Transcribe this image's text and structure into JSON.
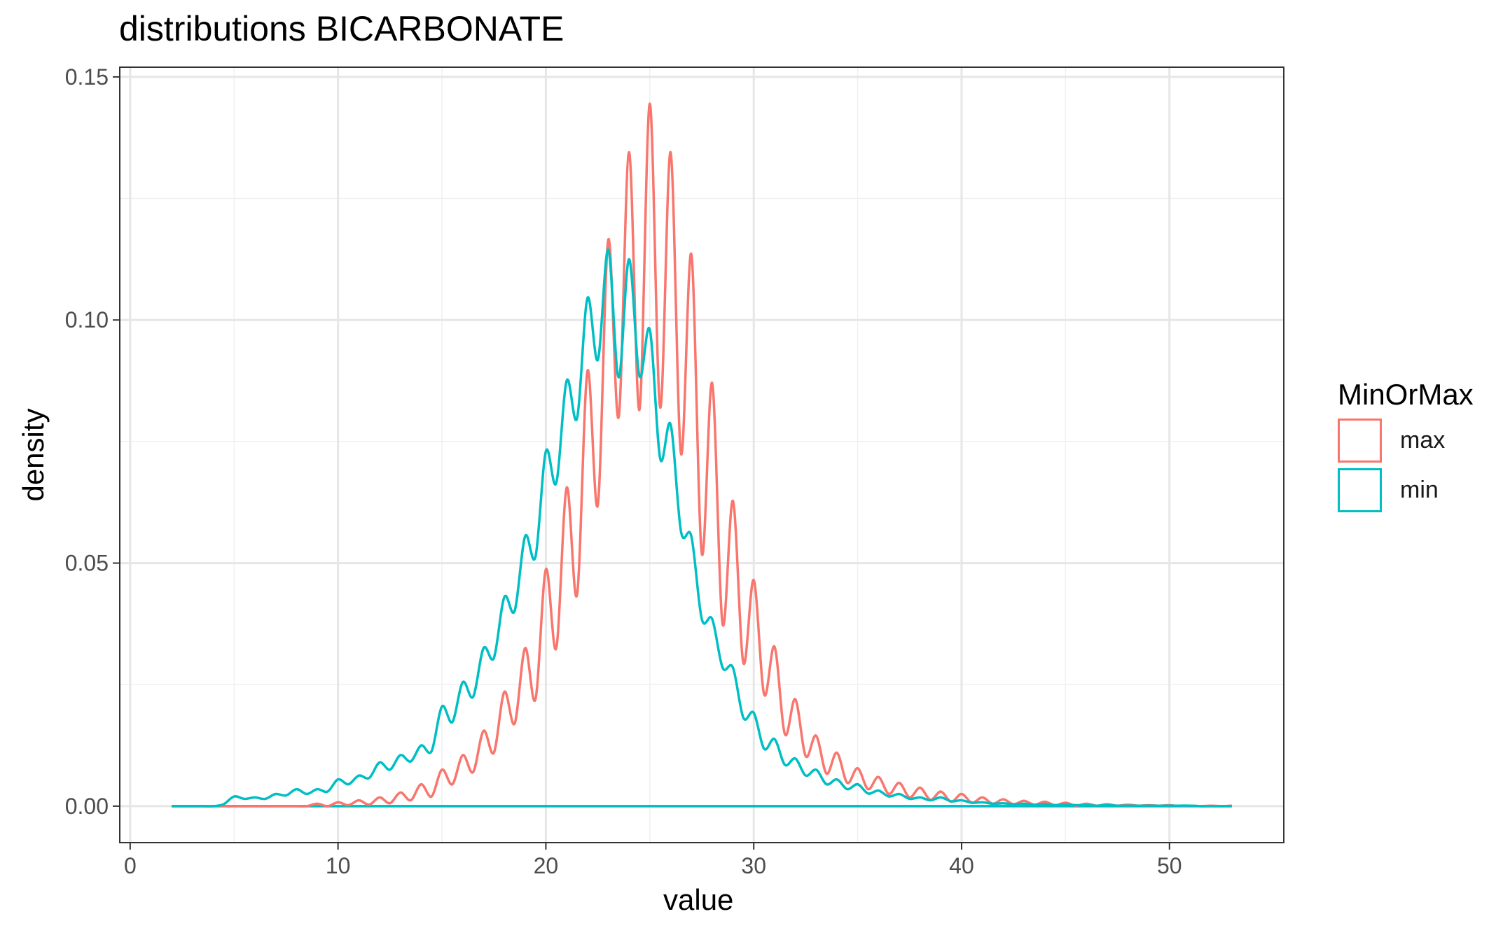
{
  "chart_data": {
    "type": "line",
    "title": "distributions BICARBONATE",
    "xlabel": "value",
    "ylabel": "density",
    "xlim": [
      -0.5,
      55.5
    ],
    "ylim": [
      -0.0075,
      0.152
    ],
    "x_ticks": [
      0,
      10,
      20,
      30,
      40,
      50
    ],
    "x_tick_labels": [
      "0",
      "10",
      "20",
      "30",
      "40",
      "50"
    ],
    "y_ticks": [
      0.0,
      0.05,
      0.1,
      0.15
    ],
    "y_tick_labels": [
      "0.00",
      "0.05",
      "0.10",
      "0.15"
    ],
    "grid": true,
    "legend": {
      "title": "MinOrMax",
      "position": "right"
    },
    "colors": {
      "max": "#F8766D",
      "min": "#00BFC4"
    },
    "series": [
      {
        "name": "max",
        "color": "#F8766D",
        "x": [
          2,
          3,
          4,
          5,
          6,
          7,
          8,
          9,
          10,
          11,
          12,
          13,
          14,
          15,
          16,
          17,
          18,
          19,
          20,
          21,
          22,
          23,
          24,
          25,
          26,
          27,
          28,
          29,
          30,
          31,
          32,
          33,
          34,
          35,
          36,
          37,
          38,
          39,
          40,
          41,
          42,
          43,
          44,
          45,
          46,
          47,
          48,
          49,
          50,
          51,
          52,
          53
        ],
        "values": [
          0,
          0,
          0,
          0,
          0,
          0,
          0,
          0.0005,
          0.0008,
          0.0012,
          0.0018,
          0.0028,
          0.0045,
          0.0075,
          0.0105,
          0.0155,
          0.0235,
          0.0325,
          0.0487,
          0.0655,
          0.0895,
          0.1165,
          0.1345,
          0.1445,
          0.1345,
          0.1135,
          0.087,
          0.0628,
          0.0465,
          0.0328,
          0.022,
          0.0145,
          0.011,
          0.0078,
          0.006,
          0.0048,
          0.0038,
          0.003,
          0.0025,
          0.0018,
          0.0014,
          0.0011,
          0.0009,
          0.0007,
          0.0005,
          0.0004,
          0.0003,
          0.0002,
          0.0002,
          0.0001,
          0.0001,
          0.0001
        ],
        "troughs": [
          0,
          0,
          0,
          0,
          0,
          0,
          0,
          0,
          0.0002,
          0.0003,
          0.0006,
          0.0012,
          0.002,
          0.0045,
          0.007,
          0.011,
          0.017,
          0.022,
          0.0325,
          0.0435,
          0.062,
          0.08,
          0.0815,
          0.082,
          0.0725,
          0.052,
          0.0375,
          0.0295,
          0.023,
          0.0148,
          0.0103,
          0.0067,
          0.0048,
          0.0035,
          0.0025,
          0.0018,
          0.0013,
          0.0009,
          0.0007,
          0.0005,
          0.0004,
          0.0003,
          0.0002,
          0.0001,
          0.0001,
          0.0001,
          0.0001,
          0.0001,
          0,
          0,
          0,
          0
        ]
      },
      {
        "name": "min",
        "color": "#00BFC4",
        "x": [
          2,
          3,
          4,
          5,
          6,
          7,
          8,
          9,
          10,
          11,
          12,
          13,
          14,
          15,
          16,
          17,
          18,
          19,
          20,
          21,
          22,
          23,
          24,
          25,
          26,
          27,
          28,
          29,
          30,
          31,
          32,
          33,
          34,
          35,
          36,
          37,
          38,
          39,
          40,
          41,
          42,
          43,
          44,
          45,
          46,
          47,
          48,
          49,
          50,
          51,
          52,
          53
        ],
        "values": [
          0,
          0,
          0,
          0.002,
          0.0018,
          0.0025,
          0.0035,
          0.0035,
          0.0055,
          0.0063,
          0.009,
          0.0105,
          0.0125,
          0.0205,
          0.0255,
          0.0325,
          0.043,
          0.0555,
          0.073,
          0.0875,
          0.1045,
          0.1145,
          0.1125,
          0.098,
          0.0785,
          0.0555,
          0.0385,
          0.0285,
          0.0192,
          0.0138,
          0.0098,
          0.0075,
          0.0055,
          0.0045,
          0.0032,
          0.0025,
          0.0018,
          0.0018,
          0.0012,
          0.0008,
          0.0006,
          0.0005,
          0.0004,
          0.0003,
          0.0002,
          0.0002,
          0.0001,
          0.0001,
          0.0001,
          0.0001,
          0,
          0
        ],
        "troughs": [
          0,
          0,
          0.0004,
          0.0015,
          0.0015,
          0.0022,
          0.0025,
          0.003,
          0.0045,
          0.0058,
          0.0075,
          0.0092,
          0.0113,
          0.0173,
          0.0225,
          0.0305,
          0.0402,
          0.0513,
          0.0665,
          0.0798,
          0.0918,
          0.0882,
          0.0885,
          0.0715,
          0.0565,
          0.0385,
          0.0285,
          0.0182,
          0.0118,
          0.0085,
          0.0063,
          0.0045,
          0.0035,
          0.0026,
          0.002,
          0.0015,
          0.0012,
          0.001,
          0.0007,
          0.0005,
          0.0004,
          0.0003,
          0.0002,
          0.0002,
          0.0001,
          0.0001,
          0.0001,
          0.0001,
          0.0001,
          0,
          0,
          0
        ]
      }
    ],
    "baseline": {
      "from": 2,
      "to": 53,
      "value": 0
    }
  }
}
